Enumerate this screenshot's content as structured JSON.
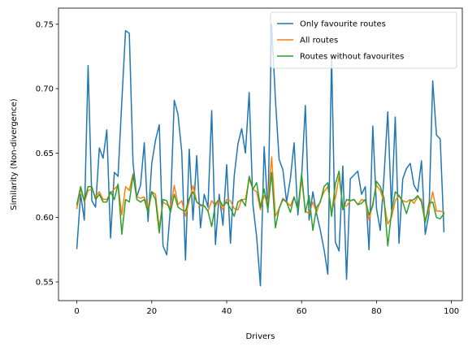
{
  "chart_data": {
    "type": "line",
    "xlabel": "Drivers",
    "ylabel": "Similarity (Non-divergence)",
    "xlim": [
      -4.9,
      102.9
    ],
    "ylim": [
      0.5355,
      0.7625
    ],
    "xticks": [
      0,
      20,
      40,
      60,
      80,
      100
    ],
    "yticks": [
      0.55,
      0.6,
      0.65,
      0.7,
      0.75
    ],
    "ytick_labels": [
      "0.55",
      "0.60",
      "0.65",
      "0.70",
      "0.75"
    ],
    "grid": false,
    "legend_position": "top-right",
    "x": [
      0,
      1,
      2,
      3,
      4,
      5,
      6,
      7,
      8,
      9,
      10,
      11,
      12,
      13,
      14,
      15,
      16,
      17,
      18,
      19,
      20,
      21,
      22,
      23,
      24,
      25,
      26,
      27,
      28,
      29,
      30,
      31,
      32,
      33,
      34,
      35,
      36,
      37,
      38,
      39,
      40,
      41,
      42,
      43,
      44,
      45,
      46,
      47,
      48,
      49,
      50,
      51,
      52,
      53,
      54,
      55,
      56,
      57,
      58,
      59,
      60,
      61,
      62,
      63,
      64,
      65,
      66,
      67,
      68,
      69,
      70,
      71,
      72,
      73,
      74,
      75,
      76,
      77,
      78,
      79,
      80,
      81,
      82,
      83,
      84,
      85,
      86,
      87,
      88,
      89,
      90,
      91,
      92,
      93,
      94,
      95,
      96,
      97,
      98
    ],
    "series": [
      {
        "name": "Only favourite routes",
        "color": "#1f77b4",
        "values": [
          0.576,
          0.618,
          0.598,
          0.718,
          0.613,
          0.608,
          0.654,
          0.646,
          0.668,
          0.584,
          0.635,
          0.632,
          0.69,
          0.745,
          0.743,
          0.642,
          0.616,
          0.625,
          0.658,
          0.597,
          0.642,
          0.66,
          0.672,
          0.578,
          0.571,
          0.608,
          0.691,
          0.68,
          0.651,
          0.567,
          0.653,
          0.598,
          0.648,
          0.592,
          0.618,
          0.608,
          0.683,
          0.579,
          0.618,
          0.594,
          0.641,
          0.58,
          0.632,
          0.657,
          0.669,
          0.65,
          0.697,
          0.61,
          0.585,
          0.547,
          0.655,
          0.604,
          0.75,
          0.692,
          0.645,
          0.637,
          0.612,
          0.63,
          0.658,
          0.602,
          0.631,
          0.687,
          0.598,
          0.62,
          0.603,
          0.59,
          0.575,
          0.556,
          0.725,
          0.581,
          0.574,
          0.64,
          0.552,
          0.63,
          0.633,
          0.636,
          0.618,
          0.624,
          0.575,
          0.671,
          0.607,
          0.59,
          0.632,
          0.682,
          0.606,
          0.678,
          0.58,
          0.63,
          0.638,
          0.642,
          0.625,
          0.62,
          0.644,
          0.587,
          0.603,
          0.706,
          0.664,
          0.661,
          0.589
        ]
      },
      {
        "name": "All routes",
        "color": "#ff7f0e",
        "values": [
          0.607,
          0.622,
          0.612,
          0.621,
          0.622,
          0.616,
          0.62,
          0.614,
          0.614,
          0.619,
          0.622,
          0.625,
          0.602,
          0.624,
          0.621,
          0.634,
          0.616,
          0.615,
          0.616,
          0.608,
          0.62,
          0.618,
          0.592,
          0.612,
          0.61,
          0.608,
          0.625,
          0.61,
          0.613,
          0.601,
          0.613,
          0.625,
          0.612,
          0.609,
          0.609,
          0.605,
          0.613,
          0.609,
          0.613,
          0.606,
          0.614,
          0.613,
          0.607,
          0.606,
          0.614,
          0.614,
          0.63,
          0.622,
          0.62,
          0.606,
          0.617,
          0.612,
          0.647,
          0.601,
          0.607,
          0.615,
          0.612,
          0.609,
          0.616,
          0.606,
          0.63,
          0.605,
          0.603,
          0.612,
          0.604,
          0.613,
          0.62,
          0.624,
          0.604,
          0.615,
          0.632,
          0.609,
          0.609,
          0.613,
          0.614,
          0.61,
          0.614,
          0.613,
          0.598,
          0.611,
          0.625,
          0.621,
          0.612,
          0.595,
          0.6,
          0.613,
          0.617,
          0.613,
          0.612,
          0.614,
          0.611,
          0.616,
          0.614,
          0.598,
          0.606,
          0.62,
          0.605,
          0.605,
          0.604
        ]
      },
      {
        "name": "Routes without favourites",
        "color": "#2ca02c",
        "values": [
          0.61,
          0.624,
          0.613,
          0.624,
          0.624,
          0.614,
          0.618,
          0.612,
          0.612,
          0.62,
          0.614,
          0.626,
          0.587,
          0.614,
          0.612,
          0.633,
          0.614,
          0.612,
          0.614,
          0.604,
          0.62,
          0.614,
          0.588,
          0.614,
          0.613,
          0.604,
          0.618,
          0.608,
          0.606,
          0.605,
          0.615,
          0.62,
          0.612,
          0.61,
          0.609,
          0.605,
          0.593,
          0.611,
          0.614,
          0.609,
          0.612,
          0.607,
          0.601,
          0.612,
          0.614,
          0.609,
          0.632,
          0.622,
          0.627,
          0.608,
          0.622,
          0.606,
          0.635,
          0.592,
          0.607,
          0.614,
          0.612,
          0.604,
          0.616,
          0.606,
          0.634,
          0.604,
          0.617,
          0.59,
          0.608,
          0.612,
          0.624,
          0.627,
          0.601,
          0.626,
          0.636,
          0.606,
          0.614,
          0.613,
          0.614,
          0.61,
          0.611,
          0.614,
          0.602,
          0.609,
          0.628,
          0.624,
          0.615,
          0.578,
          0.604,
          0.62,
          0.617,
          0.612,
          0.603,
          0.613,
          0.614,
          0.617,
          0.612,
          0.596,
          0.611,
          0.612,
          0.6,
          0.599,
          0.603
        ]
      }
    ]
  }
}
